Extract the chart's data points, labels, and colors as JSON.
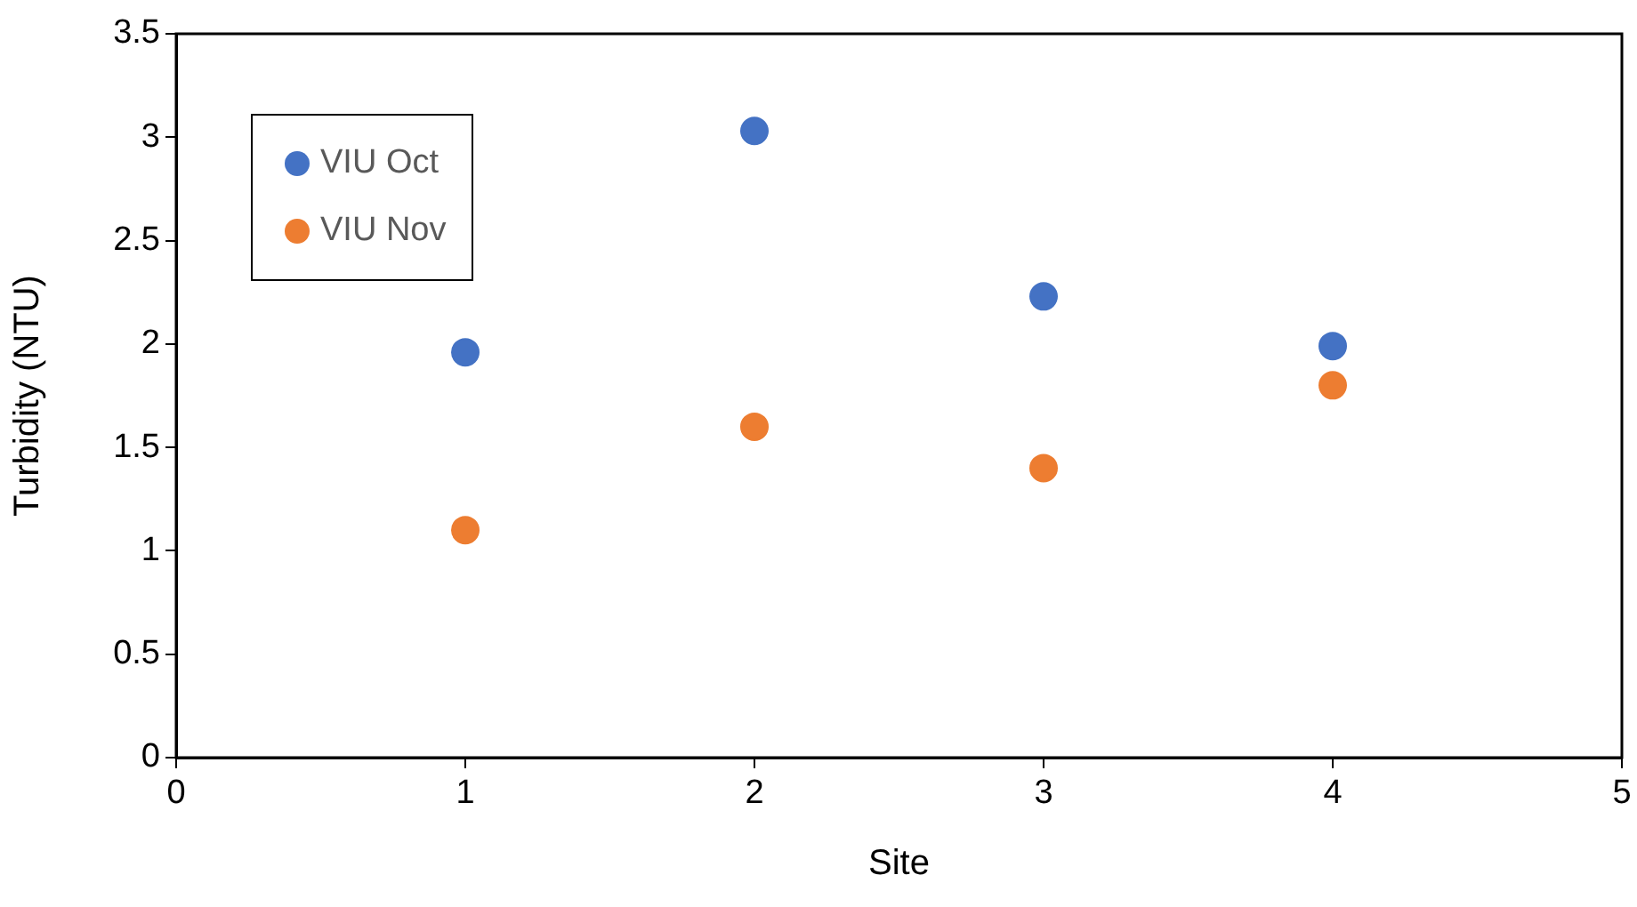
{
  "chart_data": {
    "type": "scatter",
    "xlabel": "Site",
    "ylabel": "Turbidity (NTU)",
    "x": [
      1,
      2,
      3,
      4
    ],
    "series": [
      {
        "name": "VIU Oct",
        "color": "#4472c4",
        "values": [
          1.96,
          3.03,
          2.23,
          1.99
        ]
      },
      {
        "name": "VIU Nov",
        "color": "#ed7d31",
        "values": [
          1.1,
          1.6,
          1.4,
          1.8
        ]
      }
    ],
    "xlim": [
      0,
      5
    ],
    "xticks": [
      0,
      1,
      2,
      3,
      4,
      5
    ],
    "ylim": [
      0,
      3.5
    ],
    "yticks": [
      0,
      0.5,
      1,
      1.5,
      2,
      2.5,
      3,
      3.5
    ],
    "grid": false,
    "legend": "top left",
    "marker": "circle"
  }
}
